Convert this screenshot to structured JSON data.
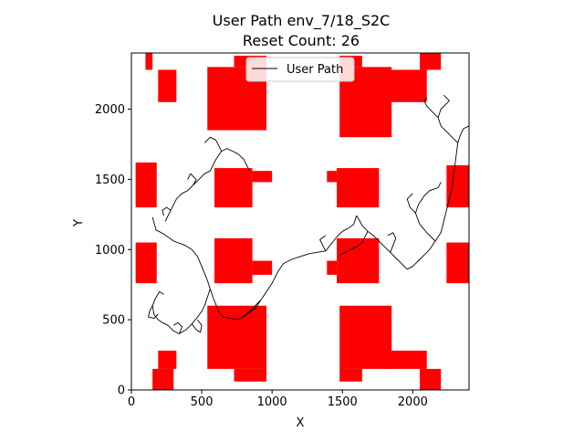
{
  "chart_data": {
    "type": "line",
    "title": "User Path env_7/18_S2C",
    "subtitle": "Reset Count: 26",
    "xlabel": "X",
    "ylabel": "Y",
    "xlim": [
      0,
      2400
    ],
    "ylim": [
      0,
      2400
    ],
    "xticks": [
      0,
      500,
      1000,
      1500,
      2000
    ],
    "yticks": [
      0,
      500,
      1000,
      1500,
      2000
    ],
    "grid": false,
    "legend_position": "top-center",
    "obstacle_color": "#ff0000",
    "path_color": "#000000",
    "series": [
      {
        "name": "User Path",
        "segments": [
          [
            [
              150,
              1230
            ],
            [
              175,
              1140
            ],
            [
              230,
              1110
            ],
            [
              300,
              1060
            ],
            [
              380,
              1030
            ],
            [
              430,
              1000
            ],
            [
              470,
              950
            ],
            [
              500,
              880
            ],
            [
              520,
              830
            ],
            [
              540,
              780
            ],
            [
              560,
              720
            ],
            [
              580,
              660
            ],
            [
              600,
              610
            ],
            [
              620,
              560
            ],
            [
              650,
              520
            ],
            [
              700,
              510
            ],
            [
              760,
              500
            ],
            [
              820,
              540
            ],
            [
              880,
              580
            ],
            [
              920,
              640
            ],
            [
              960,
              700
            ],
            [
              1000,
              760
            ],
            [
              1040,
              840
            ],
            [
              1080,
              900
            ],
            [
              1140,
              930
            ],
            [
              1200,
              950
            ],
            [
              1260,
              970
            ],
            [
              1320,
              980
            ],
            [
              1380,
              990
            ],
            [
              1420,
              1040
            ],
            [
              1460,
              1090
            ],
            [
              1500,
              1130
            ],
            [
              1540,
              1150
            ]
          ],
          [
            [
              560,
              720
            ],
            [
              540,
              660
            ],
            [
              520,
              600
            ],
            [
              500,
              560
            ],
            [
              470,
              520
            ],
            [
              430,
              470
            ],
            [
              390,
              430
            ],
            [
              340,
              400
            ],
            [
              300,
              420
            ],
            [
              260,
              460
            ],
            [
              220,
              480
            ],
            [
              190,
              500
            ],
            [
              160,
              540
            ],
            [
              150,
              600
            ],
            [
              170,
              650
            ],
            [
              200,
              700
            ],
            [
              230,
              680
            ]
          ],
          [
            [
              150,
              600
            ],
            [
              130,
              560
            ],
            [
              120,
              520
            ],
            [
              160,
              510
            ],
            [
              190,
              540
            ]
          ],
          [
            [
              340,
              400
            ],
            [
              360,
              450
            ],
            [
              330,
              480
            ],
            [
              300,
              460
            ]
          ],
          [
            [
              430,
              470
            ],
            [
              460,
              430
            ],
            [
              490,
              410
            ],
            [
              500,
              460
            ],
            [
              470,
              500
            ]
          ],
          [
            [
              240,
              1200
            ],
            [
              280,
              1280
            ],
            [
              320,
              1360
            ],
            [
              360,
              1400
            ],
            [
              400,
              1420
            ],
            [
              440,
              1460
            ],
            [
              480,
              1500
            ],
            [
              520,
              1540
            ],
            [
              560,
              1560
            ],
            [
              600,
              1640
            ],
            [
              640,
              1700
            ],
            [
              680,
              1720
            ],
            [
              720,
              1700
            ],
            [
              760,
              1680
            ]
          ],
          [
            [
              640,
              1700
            ],
            [
              600,
              1780
            ],
            [
              560,
              1800
            ],
            [
              520,
              1760
            ]
          ],
          [
            [
              440,
              1460
            ],
            [
              460,
              1500
            ],
            [
              420,
              1540
            ],
            [
              400,
              1500
            ]
          ],
          [
            [
              280,
              1280
            ],
            [
              250,
              1300
            ],
            [
              220,
              1280
            ],
            [
              230,
              1240
            ]
          ],
          [
            [
              760,
              1680
            ],
            [
              800,
              1640
            ],
            [
              820,
              1600
            ],
            [
              840,
              1560
            ]
          ],
          [
            [
              1540,
              1150
            ],
            [
              1580,
              1180
            ],
            [
              1600,
              1240
            ],
            [
              1620,
              1210
            ],
            [
              1640,
              1170
            ],
            [
              1680,
              1130
            ],
            [
              1720,
              1100
            ],
            [
              1760,
              1060
            ],
            [
              1800,
              1020
            ],
            [
              1840,
              980
            ],
            [
              1880,
              940
            ],
            [
              1920,
              900
            ],
            [
              1960,
              860
            ],
            [
              2000,
              880
            ],
            [
              2040,
              920
            ],
            [
              2080,
              960
            ],
            [
              2120,
              1000
            ],
            [
              2160,
              1060
            ],
            [
              2200,
              1120
            ],
            [
              2220,
              1200
            ],
            [
              2240,
              1280
            ],
            [
              2260,
              1360
            ],
            [
              2280,
              1440
            ],
            [
              2290,
              1520
            ],
            [
              2300,
              1600
            ],
            [
              2310,
              1680
            ],
            [
              2320,
              1760
            ],
            [
              2340,
              1820
            ],
            [
              2360,
              1860
            ],
            [
              2400,
              1880
            ]
          ],
          [
            [
              2160,
              1060
            ],
            [
              2100,
              1120
            ],
            [
              2050,
              1180
            ],
            [
              2020,
              1260
            ],
            [
              2040,
              1320
            ],
            [
              2080,
              1380
            ],
            [
              2120,
              1420
            ],
            [
              2180,
              1440
            ],
            [
              2200,
              1480
            ]
          ],
          [
            [
              2020,
              1260
            ],
            [
              1980,
              1300
            ],
            [
              1960,
              1360
            ],
            [
              2000,
              1400
            ]
          ],
          [
            [
              2320,
              1760
            ],
            [
              2280,
              1800
            ],
            [
              2240,
              1840
            ],
            [
              2200,
              1880
            ],
            [
              2180,
              1940
            ],
            [
              2200,
              2000
            ],
            [
              2240,
              2040
            ],
            [
              2260,
              2060
            ],
            [
              2220,
              2100
            ]
          ],
          [
            [
              2180,
              1940
            ],
            [
              2140,
              1980
            ],
            [
              2100,
              2020
            ],
            [
              2080,
              2060
            ],
            [
              2100,
              2080
            ]
          ],
          [
            [
              1680,
              1130
            ],
            [
              1660,
              1090
            ],
            [
              1640,
              1050
            ],
            [
              1600,
              1020
            ],
            [
              1560,
              1000
            ],
            [
              1520,
              980
            ],
            [
              1480,
              960
            ]
          ],
          [
            [
              1840,
              980
            ],
            [
              1860,
              1030
            ],
            [
              1880,
              1080
            ],
            [
              1860,
              1120
            ],
            [
              1820,
              1100
            ]
          ],
          [
            [
              1380,
              990
            ],
            [
              1360,
              1030
            ],
            [
              1340,
              1070
            ],
            [
              1380,
              1100
            ]
          ],
          [
            [
              920,
              640
            ],
            [
              880,
              600
            ],
            [
              840,
              560
            ],
            [
              800,
              520
            ]
          ]
        ]
      }
    ],
    "obstacles": [
      [
        [
          150,
          2280
        ],
        [
          100,
          2400
        ]
      ],
      [
        [
          190,
          2050
        ],
        [
          320,
          2280
        ]
      ],
      [
        [
          540,
          1850
        ],
        [
          960,
          2300
        ]
      ],
      [
        [
          730,
          2300
        ],
        [
          960,
          2380
        ]
      ],
      [
        [
          1480,
          1800
        ],
        [
          1850,
          2300
        ]
      ],
      [
        [
          1480,
          2300
        ],
        [
          1640,
          2380
        ]
      ],
      [
        [
          1800,
          2050
        ],
        [
          2100,
          2280
        ]
      ],
      [
        [
          2050,
          2280
        ],
        [
          2200,
          2400
        ]
      ],
      [
        [
          30,
          1300
        ],
        [
          180,
          1620
        ]
      ],
      [
        [
          590,
          1300
        ],
        [
          860,
          1580
        ]
      ],
      [
        [
          860,
          1480
        ],
        [
          1000,
          1560
        ]
      ],
      [
        [
          1460,
          1300
        ],
        [
          1760,
          1580
        ]
      ],
      [
        [
          1390,
          1480
        ],
        [
          1460,
          1560
        ]
      ],
      [
        [
          2240,
          1300
        ],
        [
          2420,
          1600
        ]
      ],
      [
        [
          30,
          760
        ],
        [
          180,
          1050
        ]
      ],
      [
        [
          590,
          760
        ],
        [
          860,
          1080
        ]
      ],
      [
        [
          860,
          820
        ],
        [
          1000,
          920
        ]
      ],
      [
        [
          1460,
          760
        ],
        [
          1760,
          1080
        ]
      ],
      [
        [
          1390,
          820
        ],
        [
          1460,
          920
        ]
      ],
      [
        [
          2240,
          760
        ],
        [
          2420,
          1050
        ]
      ],
      [
        [
          540,
          150
        ],
        [
          960,
          600
        ]
      ],
      [
        [
          730,
          60
        ],
        [
          960,
          150
        ]
      ],
      [
        [
          150,
          0
        ],
        [
          300,
          150
        ]
      ],
      [
        [
          190,
          150
        ],
        [
          320,
          280
        ]
      ],
      [
        [
          1480,
          150
        ],
        [
          1850,
          600
        ]
      ],
      [
        [
          1480,
          60
        ],
        [
          1640,
          150
        ]
      ],
      [
        [
          1800,
          150
        ],
        [
          2100,
          280
        ]
      ],
      [
        [
          2050,
          0
        ],
        [
          2200,
          150
        ]
      ]
    ]
  }
}
